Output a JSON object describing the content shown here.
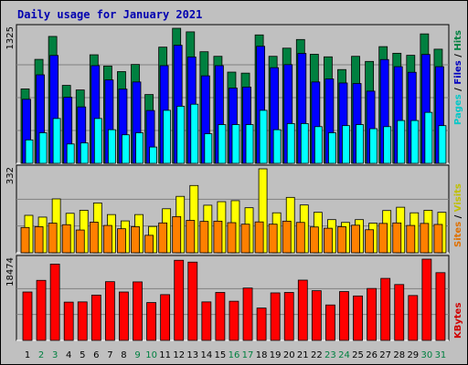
{
  "title": "Daily usage for January 2021",
  "colors": {
    "hits": "#00ffff",
    "files": "#0000ff",
    "pages": "#00ff00",
    "visits": "#ffff00",
    "sites": "#ff8000",
    "kbytes": "#ff0000",
    "weekend": "#008040",
    "weekday": "#000000"
  },
  "chart_data": [
    {
      "type": "bar",
      "panel": "hits-files-pages",
      "categories": [
        "1",
        "2",
        "3",
        "4",
        "5",
        "6",
        "7",
        "8",
        "9",
        "10",
        "11",
        "12",
        "13",
        "14",
        "15",
        "16",
        "17",
        "18",
        "19",
        "20",
        "21",
        "22",
        "23",
        "24",
        "25",
        "26",
        "27",
        "28",
        "29",
        "30",
        "31"
      ],
      "ylabel": "Pages / Files / Hits",
      "ymax_label": "1325",
      "series": [
        {
          "name": "Hits",
          "values": [
            730,
            1020,
            1245,
            765,
            720,
            1065,
            955,
            900,
            970,
            675,
            1140,
            1325,
            1290,
            1095,
            1050,
            895,
            885,
            1260,
            1050,
            1130,
            1215,
            1070,
            1045,
            920,
            1050,
            1000,
            1145,
            1080,
            1060,
            1270,
            1120
          ]
        },
        {
          "name": "Files",
          "values": [
            700,
            940,
            1130,
            720,
            625,
            1030,
            890,
            800,
            870,
            590,
            1030,
            1230,
            1115,
            930,
            1030,
            810,
            820,
            1220,
            1010,
            1040,
            1150,
            870,
            900,
            860,
            855,
            780,
            1090,
            1020,
            965,
            1140,
            1020
          ]
        },
        {
          "name": "Pages",
          "values": [
            230,
            300,
            440,
            190,
            200,
            440,
            330,
            280,
            300,
            160,
            520,
            560,
            580,
            290,
            380,
            380,
            380,
            520,
            330,
            390,
            390,
            360,
            300,
            370,
            380,
            340,
            360,
            420,
            420,
            500,
            370
          ]
        }
      ]
    },
    {
      "type": "bar",
      "panel": "visits-sites",
      "categories": [
        "1",
        "2",
        "3",
        "4",
        "5",
        "6",
        "7",
        "8",
        "9",
        "10",
        "11",
        "12",
        "13",
        "14",
        "15",
        "16",
        "17",
        "18",
        "19",
        "20",
        "21",
        "22",
        "23",
        "24",
        "25",
        "26",
        "27",
        "28",
        "29",
        "30",
        "31"
      ],
      "ylabel": "Sites / Visits",
      "ymax_label": "332",
      "series": [
        {
          "name": "Visits",
          "values": [
            148,
            141,
            213,
            156,
            168,
            197,
            151,
            126,
            151,
            104,
            174,
            223,
            266,
            188,
            202,
            206,
            178,
            332,
            158,
            219,
            189,
            160,
            131,
            120,
            131,
            117,
            167,
            180,
            158,
            168,
            160
          ]
        },
        {
          "name": "Sites",
          "values": [
            100,
            103,
            117,
            111,
            90,
            121,
            108,
            95,
            103,
            69,
            118,
            143,
            128,
            124,
            125,
            119,
            113,
            122,
            113,
            125,
            120,
            102,
            97,
            103,
            109,
            91,
            116,
            118,
            108,
            116,
            112
          ]
        }
      ]
    },
    {
      "type": "bar",
      "panel": "kbytes",
      "categories": [
        "1",
        "2",
        "3",
        "4",
        "5",
        "6",
        "7",
        "8",
        "9",
        "10",
        "11",
        "12",
        "13",
        "14",
        "15",
        "16",
        "17",
        "18",
        "19",
        "20",
        "21",
        "22",
        "23",
        "24",
        "25",
        "26",
        "27",
        "28",
        "29",
        "30",
        "31"
      ],
      "ylabel": "KBytes",
      "ymax_label": "18474",
      "series": [
        {
          "name": "KBytes",
          "values": [
            11000,
            13650,
            17350,
            8700,
            8750,
            10300,
            13350,
            11000,
            13300,
            8600,
            10400,
            18220,
            17800,
            8750,
            10900,
            8900,
            11900,
            7350,
            10800,
            10900,
            13700,
            11300,
            8050,
            11100,
            10100,
            11800,
            14100,
            12700,
            10200,
            18474,
            15400
          ]
        }
      ]
    }
  ]
}
